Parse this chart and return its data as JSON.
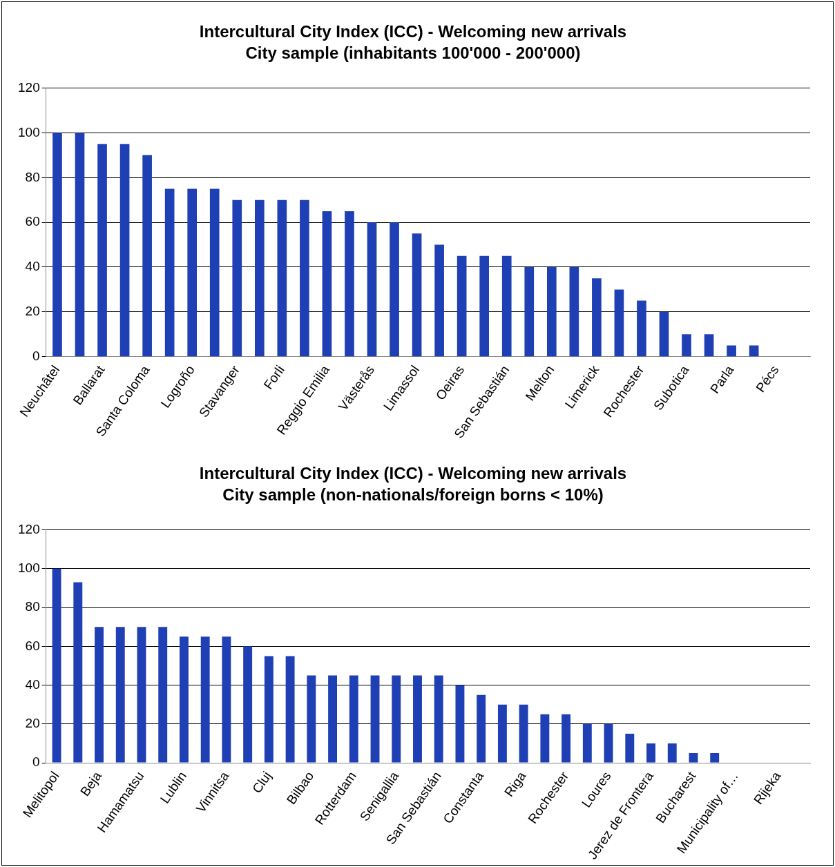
{
  "chart_data": [
    {
      "type": "bar",
      "title": "Intercultural City Index (ICC) - Welcoming new arrivals",
      "subtitle": "City sample (inhabitants 100'000 - 200'000)",
      "categories": [
        "Neuchâtel",
        null,
        "Ballarat",
        null,
        "Santa Coloma",
        null,
        "Logroño",
        null,
        "Stavanger",
        null,
        "Forli",
        null,
        "Reggio Emilia",
        null,
        "Västerås",
        null,
        "Limassol",
        null,
        "Oeiras",
        null,
        "San Sebastián",
        null,
        "Melton",
        null,
        "Limerick",
        null,
        "Rochester",
        null,
        "Subotica",
        null,
        "Parla",
        null,
        "Pécs",
        null
      ],
      "values": [
        100,
        100,
        95,
        95,
        90,
        75,
        75,
        75,
        70,
        70,
        70,
        70,
        65,
        65,
        60,
        60,
        55,
        50,
        45,
        45,
        45,
        40,
        40,
        40,
        35,
        30,
        25,
        20,
        10,
        10,
        5,
        5,
        0,
        0
      ],
      "color": "#1f3fb4",
      "ylim": [
        0,
        120
      ],
      "yticks": [
        0,
        20,
        40,
        60,
        80,
        100,
        120
      ],
      "grid": "y",
      "legend": false
    },
    {
      "type": "bar",
      "title": "Intercultural City Index (ICC) - Welcoming new arrivals",
      "subtitle": "City sample (non-nationals/foreign borns < 10%)",
      "categories": [
        "Melitopol",
        null,
        "Beja",
        null,
        "Hamamatsu",
        null,
        "Lublin",
        null,
        "Vinnitsa",
        null,
        "Cluj",
        null,
        "Bilbao",
        null,
        "Rotterdam",
        null,
        "Senigallia",
        null,
        "San Sebastián",
        null,
        "Constanta",
        null,
        "Riga",
        null,
        "Rochester",
        null,
        "Loures",
        null,
        "Jerez de Frontera",
        null,
        "Bucharest",
        null,
        "Municipality of…",
        null,
        "Rijeka",
        null
      ],
      "values": [
        100,
        93,
        70,
        70,
        70,
        70,
        65,
        65,
        65,
        60,
        55,
        55,
        45,
        45,
        45,
        45,
        45,
        45,
        45,
        40,
        35,
        30,
        30,
        25,
        25,
        20,
        20,
        15,
        10,
        10,
        5,
        5,
        0,
        0,
        0,
        0
      ],
      "color": "#1f3fb4",
      "ylim": [
        0,
        120
      ],
      "yticks": [
        0,
        20,
        40,
        60,
        80,
        100,
        120
      ],
      "grid": "y",
      "legend": false
    }
  ]
}
